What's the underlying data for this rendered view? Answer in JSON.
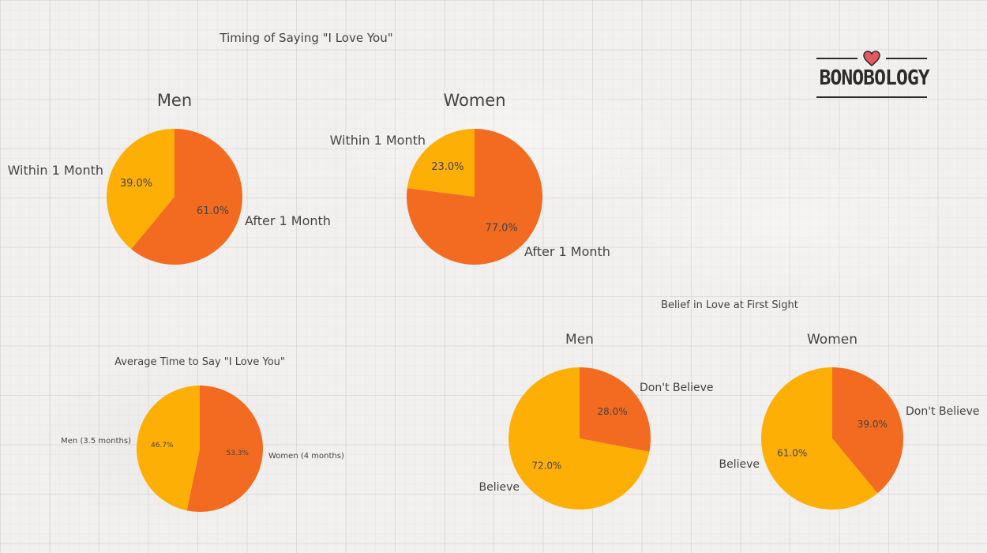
{
  "colors": {
    "orange": "#f26b21",
    "yellow": "#feaf06",
    "text": "#444444",
    "logo": "#2b2b2b",
    "heart": "#e35a5f"
  },
  "logo": {
    "text": "BONOBOLOGY",
    "icon": "heart-icon"
  },
  "chart_data": [
    {
      "type": "pie",
      "title": "Timing of Saying \"I Love You\"",
      "subtitle": "Men",
      "slices": [
        {
          "label": "Within 1 Month",
          "value": 39.0,
          "pct_label": "39.0%",
          "color": "#feaf06"
        },
        {
          "label": "After 1 Month",
          "value": 61.0,
          "pct_label": "61.0%",
          "color": "#f26b21"
        }
      ]
    },
    {
      "type": "pie",
      "subtitle": "Women",
      "slices": [
        {
          "label": "Within 1 Month",
          "value": 23.0,
          "pct_label": "23.0%",
          "color": "#feaf06"
        },
        {
          "label": "After 1 Month",
          "value": 77.0,
          "pct_label": "77.0%",
          "color": "#f26b21"
        }
      ]
    },
    {
      "type": "pie",
      "title": "Average Time to Say \"I Love You\"",
      "slices": [
        {
          "label": "Women (4 months)",
          "value": 53.3,
          "pct_label": "53.3%",
          "color": "#f26b21"
        },
        {
          "label": "Men (3.5 months)",
          "value": 46.7,
          "pct_label": "46.7%",
          "color": "#feaf06"
        }
      ]
    },
    {
      "type": "pie",
      "title": "Belief in Love at First Sight",
      "subtitle": "Men",
      "slices": [
        {
          "label": "Don't Believe",
          "value": 28.0,
          "pct_label": "28.0%",
          "color": "#f26b21"
        },
        {
          "label": "Believe",
          "value": 72.0,
          "pct_label": "72.0%",
          "color": "#feaf06"
        }
      ]
    },
    {
      "type": "pie",
      "subtitle": "Women",
      "slices": [
        {
          "label": "Don't Believe",
          "value": 39.0,
          "pct_label": "39.0%",
          "color": "#f26b21"
        },
        {
          "label": "Believe",
          "value": 61.0,
          "pct_label": "61.0%",
          "color": "#feaf06"
        }
      ]
    }
  ]
}
